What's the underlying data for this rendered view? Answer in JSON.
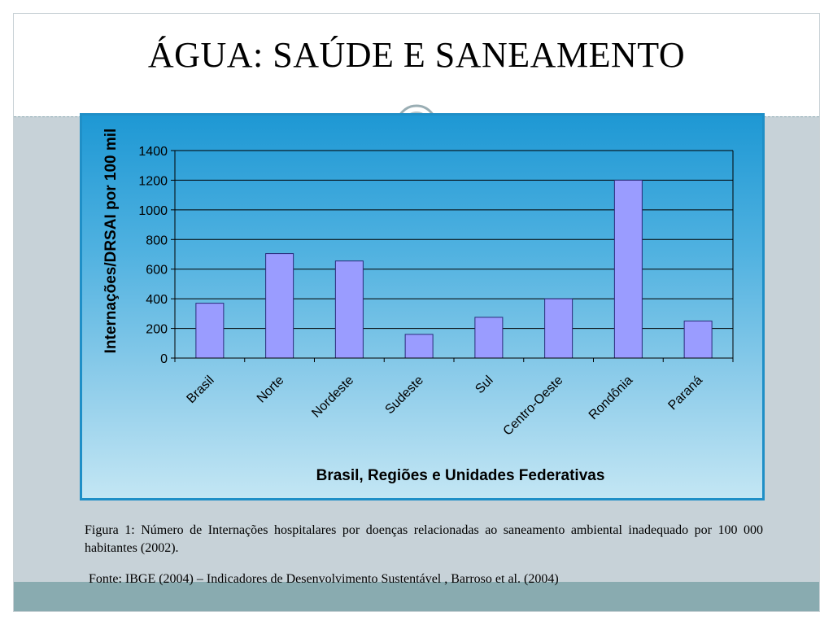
{
  "slide": {
    "title": "ÁGUA: SAÚDE E SANEAMENTO",
    "caption": "Figura 1: Número de Internações hospitalares por doenças relacionadas ao saneamento ambiental inadequado por 100 000 habitantes (2002).",
    "source": "Fonte: IBGE (2004) – Indicadores de Desenvolvimento Sustentável , Barroso et al. (2004)"
  },
  "colors": {
    "bar_fill": "#9a9cff",
    "bar_stroke": "#2a2a7a",
    "panel_border": "#1f8fc7"
  },
  "chart_data": {
    "type": "bar",
    "categories": [
      "Brasil",
      "Norte",
      "Nordeste",
      "Sudeste",
      "Sul",
      "Centro-Oeste",
      "Rondônia",
      "Paraná"
    ],
    "values": [
      370,
      705,
      655,
      160,
      275,
      400,
      1200,
      250
    ],
    "xlabel": "Brasil, Regiões e Unidades Federativas",
    "ylabel": "Internações/DRSAI por 100 mil",
    "ylim": [
      0,
      1400
    ],
    "yticks": [
      0,
      200,
      400,
      600,
      800,
      1000,
      1200,
      1400
    ],
    "grid": true,
    "legend": "none"
  }
}
